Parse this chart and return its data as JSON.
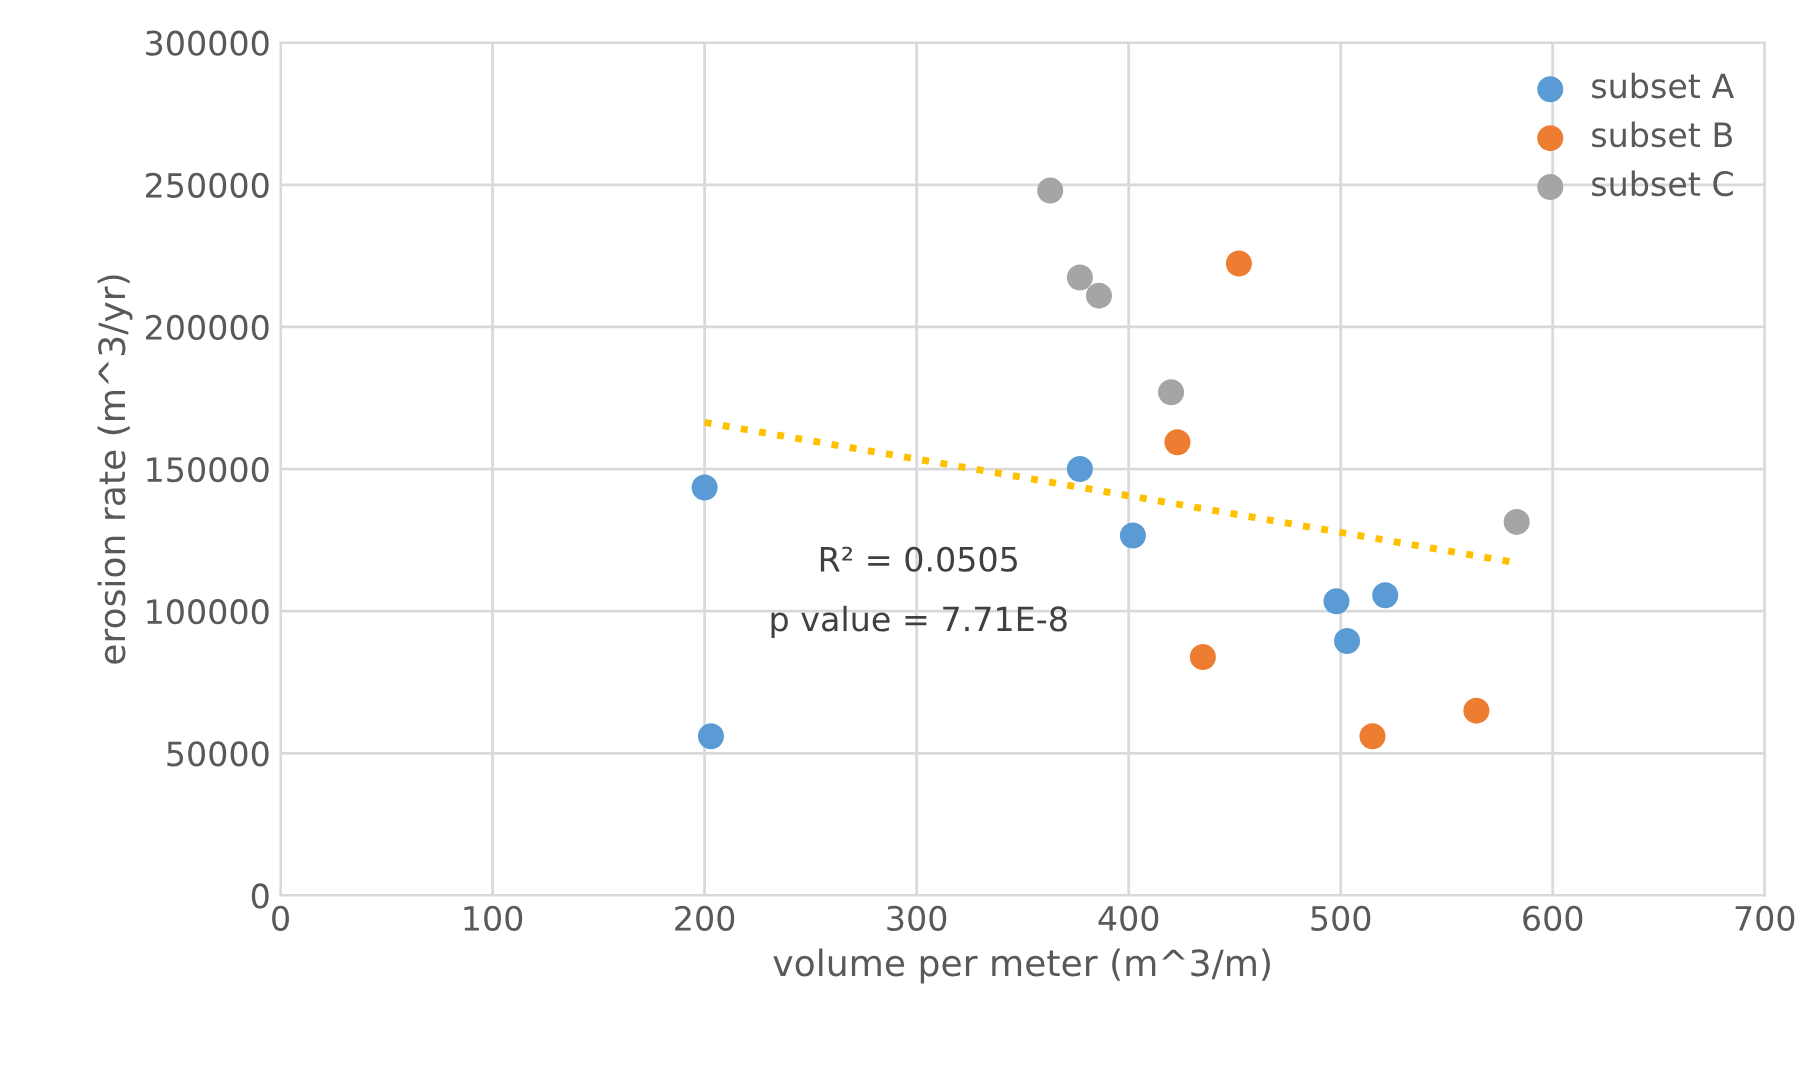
{
  "chart_data": {
    "type": "scatter",
    "xlabel": "volume per meter (m^3/m)",
    "ylabel": "erosion rate (m^3/yr)",
    "series": [
      {
        "name": "subset A",
        "color": "#5b9bd5",
        "x": [
          200,
          203,
          377,
          402,
          498,
          503,
          521
        ],
        "values": [
          143500,
          56000,
          150000,
          126600,
          103500,
          89500,
          105600
        ]
      },
      {
        "name": "subset B",
        "color": "#ed7d31",
        "x": [
          452,
          423,
          435,
          515,
          564
        ],
        "values": [
          222300,
          159400,
          83900,
          56000,
          65000
        ]
      },
      {
        "name": "subset C",
        "color": "#a5a5a5",
        "x": [
          363,
          377,
          386,
          420,
          583
        ],
        "values": [
          248000,
          217400,
          211000,
          177000,
          131400
        ]
      },
      {
        "type": "line",
        "color": "#ffc000",
        "line_style": "dotted",
        "marker": "none",
        "x": [
          200,
          580
        ],
        "values": [
          166400,
          117400
        ]
      }
    ],
    "annotations": [
      "R² = 0.0505",
      "p value = 7.71E-8"
    ],
    "xlim": [
      0,
      700
    ],
    "xticks": [
      0,
      100,
      200,
      300,
      400,
      500,
      600,
      700
    ],
    "ylim": [
      0,
      300000
    ],
    "yticks": [
      0,
      50000,
      100000,
      150000,
      200000,
      250000,
      300000
    ],
    "grid": true,
    "legend": "top right",
    "marker": "circle"
  }
}
